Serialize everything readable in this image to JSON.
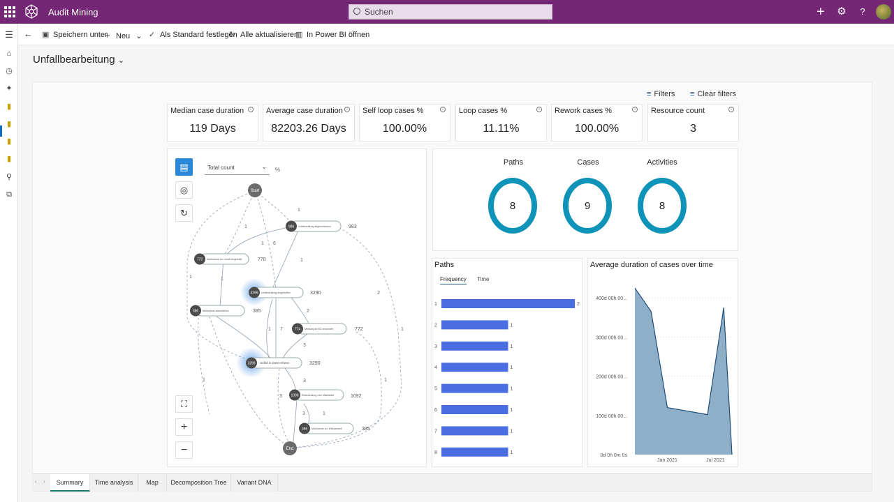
{
  "app": {
    "title": "Audit Mining",
    "search_placeholder": "Suchen"
  },
  "topbar_icons": [
    "waffle-icon",
    "add-icon",
    "gear-icon",
    "help-icon",
    "avatar"
  ],
  "left_rail": [
    "hamburger-icon",
    "home-icon",
    "recent-icon",
    "pin-icon",
    "report-icon",
    "report-icon",
    "report-icon",
    "report-icon",
    "settings-icon",
    "flow-icon"
  ],
  "commands": {
    "save_as": "Speichern unter",
    "new": "Neu",
    "set_default": "Als Standard festlegen",
    "refresh_all": "Alle aktualisieren",
    "open_powerbi": "In Power BI öffnen"
  },
  "page": {
    "title": "Unfallbearbeitung"
  },
  "toolbar": {
    "filters": "Filters",
    "clear_filters": "Clear filters"
  },
  "kpis": [
    {
      "label": "Median case duration",
      "value": "119 Days"
    },
    {
      "label": "Average case duration",
      "value": "82203.26 Days"
    },
    {
      "label": "Self loop cases %",
      "value": "100.00%"
    },
    {
      "label": "Loop cases %",
      "value": "11.11%"
    },
    {
      "label": "Rework cases %",
      "value": "100.00%"
    },
    {
      "label": "Resource count",
      "value": "3"
    }
  ],
  "process_map": {
    "metric_select": "Total count",
    "percent_symbol": "%",
    "start_label": "Start",
    "end_label": "End",
    "nodes": [
      {
        "count": "986",
        "label": "Unfallmeldung abgeschlossen",
        "side": "983"
      },
      {
        "count": "772",
        "label": "Maßnahme zur Unfall eingeleitet",
        "side": "770"
      },
      {
        "count": "3299",
        "label": "Unfallmeldung eingetroffen",
        "side": "3290"
      },
      {
        "count": "386",
        "label": "Maßnahme abschließen",
        "side": "385"
      },
      {
        "count": "774",
        "label": "Meldung an BG versendet",
        "side": "772"
      },
      {
        "count": "3299",
        "label": "Unfall in DaM erfasst",
        "side": "3290"
      },
      {
        "count": "1096",
        "label": "Rückmeldung vom Mitarbeiter",
        "side": "1092"
      },
      {
        "count": "386",
        "label": "Maßnahme zur Wirksamkeit",
        "side": "385"
      }
    ],
    "edge_labels": [
      "1",
      "1",
      "1",
      "6",
      "1",
      "1",
      "2",
      "1",
      "2",
      "1",
      "7",
      "1",
      "3",
      "3",
      "3",
      "1",
      "3",
      "1",
      "1"
    ]
  },
  "counts": [
    {
      "label": "Paths",
      "value": "8"
    },
    {
      "label": "Cases",
      "value": "9"
    },
    {
      "label": "Activities",
      "value": "8"
    }
  ],
  "paths_chart": {
    "title": "Paths",
    "tabs": [
      "Frequency",
      "Time"
    ],
    "active_tab": "Frequency"
  },
  "duration_chart": {
    "title": "Average duration of cases over time"
  },
  "chart_data": [
    {
      "type": "bar",
      "orientation": "horizontal",
      "title": "Paths",
      "categories": [
        "1",
        "2",
        "3",
        "4",
        "5",
        "6",
        "7",
        "8"
      ],
      "values": [
        2,
        1,
        1,
        1,
        1,
        1,
        1,
        1
      ],
      "color": "#4a6ee0"
    },
    {
      "type": "area",
      "title": "Average duration of cases over time",
      "y_tick_labels": [
        "0d 0h 0m 0s",
        "100d 00h 00...",
        "200d 00h 00...",
        "300d 00h 00...",
        "400d 00h 00..."
      ],
      "x_tick_labels": [
        "Jan 2021",
        "Jul 2021"
      ],
      "ylim": [
        0,
        450
      ],
      "points": [
        {
          "x": "2020-09",
          "y": 425
        },
        {
          "x": "2020-11",
          "y": 365
        },
        {
          "x": "2021-01",
          "y": 120
        },
        {
          "x": "2021-06",
          "y": 102
        },
        {
          "x": "2021-08",
          "y": 375
        },
        {
          "x": "2021-09",
          "y": 0
        }
      ],
      "fill_color": "#8fafc9",
      "line_color": "#1f4e79"
    }
  ],
  "page_tabs": [
    "Summary",
    "Time analysis",
    "Map",
    "Decomposition Tree",
    "Variant DNA"
  ],
  "active_page_tab": "Summary",
  "colors": {
    "brand": "#742774",
    "ring": "#0f93b8",
    "bar": "#4a6ee0",
    "accent": "#2b88d8"
  }
}
